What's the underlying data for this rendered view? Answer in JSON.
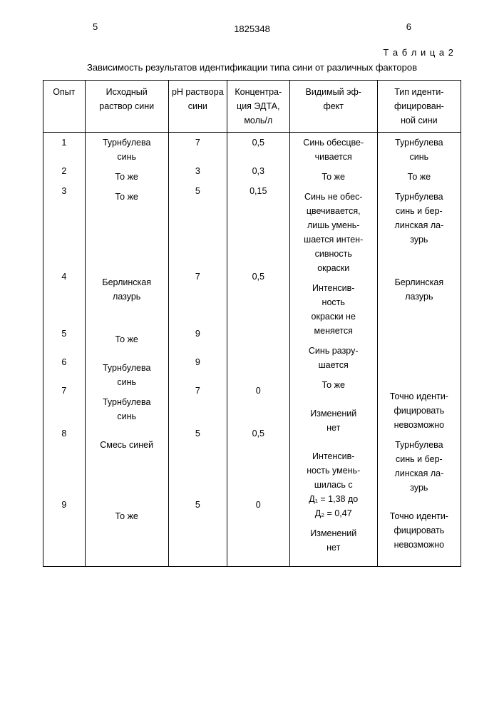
{
  "page": {
    "left_num": "5",
    "right_num": "6",
    "doc_id": "1825348",
    "table_label": "Т а б л и ц а 2",
    "caption": "Зависимость результатов идентификации типа сини от различных факторов"
  },
  "table": {
    "columns": [
      "Опыт",
      "Исходный\nраствор сини",
      "рН раствора\nсини",
      "Концентра-\nция ЭДТА,\nмоль/л",
      "Видимый эф-\nфект",
      "Тип иденти-\nфицирован-\nной сини"
    ],
    "rows": [
      [
        "1",
        "Турнбулева\nсинь",
        "7",
        "0,5",
        "Синь обесцве-\nчивается",
        "Турнбулева\nсинь"
      ],
      [
        "2",
        "То же",
        "3",
        "0,3",
        "То же",
        "То же"
      ],
      [
        "3",
        "То же",
        "5",
        "0,15",
        "Синь не обес-\nцвечивается,\nлишь умень-\nшается интен-\nсивность\nокраски",
        "Турнбулева\nсинь и бер-\nлинская ла-\nзурь"
      ],
      [
        "4",
        "Берлинская\nлазурь",
        "7",
        "0,5",
        "Интенсив-\nность\nокраски не\nменяется",
        "Берлинская\nлазурь"
      ],
      [
        "5",
        "То же",
        "9",
        "",
        "Синь разру-\nшается",
        ""
      ],
      [
        "6",
        "Турнбулева\nсинь",
        "9",
        "",
        "То же",
        ""
      ],
      [
        "7",
        "Турнбулева\nсинь",
        "7",
        "0",
        "Изменений\nнет",
        "Точно иденти-\nфицировать\nневозможно"
      ],
      [
        "8",
        "Смесь синей",
        "5",
        "0,5",
        "Интенсив-\nность умень-\nшилась с\nД₁ = 1,38 до\nД₂ = 0,47",
        "Турнбулева\nсинь и бер-\nлинская ла-\nзурь"
      ],
      [
        "9",
        "То же",
        "5",
        "0",
        "Изменений\nнет",
        "Точно иденти-\nфицировать\nневозможно"
      ]
    ]
  }
}
